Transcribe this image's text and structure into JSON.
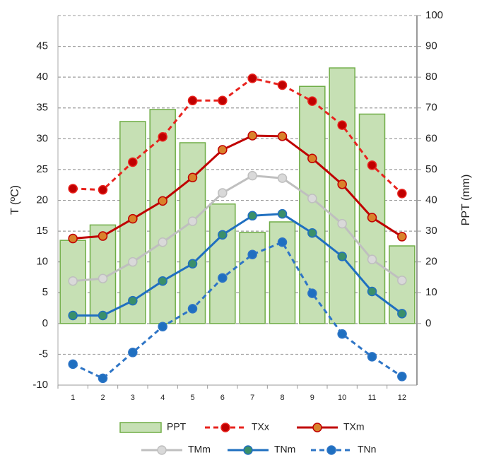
{
  "chart_data": {
    "type": "combo",
    "ylabel": "T (ºC)",
    "y2label": "PPT (mm)",
    "categories": [
      "1",
      "2",
      "3",
      "4",
      "5",
      "6",
      "7",
      "8",
      "9",
      "10",
      "11",
      "12"
    ],
    "ylim": [
      -10,
      50
    ],
    "yticks": [
      -10,
      -5,
      0,
      5,
      10,
      15,
      20,
      25,
      30,
      35,
      40,
      45
    ],
    "y2lim": [
      -20,
      100
    ],
    "y2ticks": [
      0,
      10,
      20,
      30,
      40,
      50,
      60,
      70,
      80,
      90,
      100
    ],
    "grid": true,
    "series": [
      {
        "name": "PPT",
        "type": "bar",
        "axis": "y2",
        "color": "#c6e0b4",
        "edge_color": "#70ad47",
        "values": [
          27,
          32,
          65.6,
          69.5,
          58.7,
          38.8,
          29.6,
          33,
          77,
          83,
          68,
          25.2
        ]
      },
      {
        "name": "TXx",
        "type": "line",
        "dashed": true,
        "color": "#e8231e",
        "marker_color": "#c00000",
        "values": [
          21.9,
          21.7,
          26.2,
          30.3,
          36.2,
          36.2,
          39.8,
          38.7,
          36.1,
          32.2,
          25.7,
          21.1
        ]
      },
      {
        "name": "TXm",
        "type": "line",
        "dashed": false,
        "color": "#c00000",
        "marker_color": "#d9822b",
        "values": [
          13.8,
          14.2,
          17,
          19.9,
          23.7,
          28.2,
          30.5,
          30.4,
          26.8,
          22.6,
          17.2,
          14.1
        ]
      },
      {
        "name": "TMm",
        "type": "line",
        "dashed": false,
        "color": "#bfbfbf",
        "marker_color": "#d9d9d9",
        "values": [
          6.9,
          7.3,
          10,
          13.2,
          16.6,
          21.2,
          24,
          23.6,
          20.3,
          16.2,
          10.4,
          7
        ]
      },
      {
        "name": "TNm",
        "type": "line",
        "dashed": false,
        "color": "#1f6fc0",
        "marker_color": "#3a8f6a",
        "values": [
          1.3,
          1.3,
          3.7,
          6.9,
          9.7,
          14.4,
          17.5,
          17.8,
          14.7,
          10.9,
          5.2,
          1.6
        ]
      },
      {
        "name": "TNn",
        "type": "line",
        "dashed": true,
        "color": "#2e75c6",
        "marker_color": "#1f6fc0",
        "values": [
          -6.6,
          -8.9,
          -4.7,
          -0.5,
          2.4,
          7.4,
          11.2,
          13.2,
          4.9,
          -1.7,
          -5.4,
          -8.6
        ]
      }
    ]
  }
}
